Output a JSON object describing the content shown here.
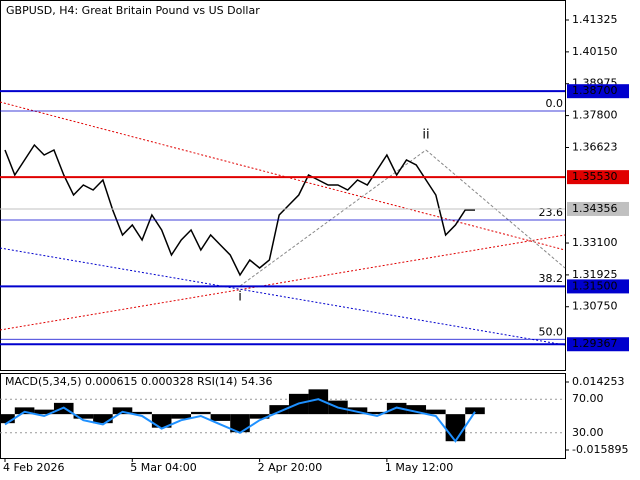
{
  "chart_data": {
    "type": "price-chart",
    "title": "GBPUSD, H4:  Great Britain Pound vs US Dollar",
    "ylim": [
      1.28417,
      1.42063
    ],
    "yticks": [
      {
        "value": 1.41325,
        "label": "1.41325"
      },
      {
        "value": 1.4015,
        "label": "1.40150"
      },
      {
        "value": 1.38975,
        "label": "1.38975"
      },
      {
        "value": 1.378,
        "label": "1.37800"
      },
      {
        "value": 1.36623,
        "label": "1.36623"
      },
      {
        "value": 1.331,
        "label": "1.33100"
      },
      {
        "value": 1.31925,
        "label": "1.31925"
      },
      {
        "value": 1.3075,
        "label": "1.30750"
      }
    ],
    "close": {
      "color": "#000000",
      "values": [
        1.36531,
        1.35609,
        1.36162,
        1.36715,
        1.36346,
        1.36531,
        1.35609,
        1.34871,
        1.3524,
        1.35056,
        1.35425,
        1.34318,
        1.33396,
        1.33765,
        1.33212,
        1.34134,
        1.33581,
        1.32659,
        1.33212,
        1.33581,
        1.32843,
        1.33396,
        1.33027,
        1.32659,
        1.31921,
        1.32474,
        1.32179,
        1.32474,
        1.34134,
        1.34503,
        1.34871,
        1.35609,
        1.35425,
        1.3524,
        1.3524,
        1.35056,
        1.35425,
        1.3524,
        1.35793,
        1.36346,
        1.35609,
        1.36162,
        1.35978,
        1.35425,
        1.34871,
        1.33396,
        1.33765,
        1.34318,
        1.34318
      ]
    },
    "x_labels": [
      {
        "index": 0,
        "label": "4 Feb 2026"
      },
      {
        "index": 13,
        "label": "5 Mar 04:00"
      },
      {
        "index": 26,
        "label": "2 Apr 20:00"
      },
      {
        "index": 39,
        "label": "1 May 12:00"
      }
    ],
    "levels": [
      {
        "value": 1.387,
        "label": "1.38700",
        "color": "#0000cd"
      },
      {
        "value": 1.3553,
        "label": "1.35530",
        "color": "#e00000"
      },
      {
        "value": 1.315,
        "label": "1.31500",
        "color": "#0000cd"
      },
      {
        "value": 1.29367,
        "label": "1.29367",
        "color": "#0000cd"
      }
    ],
    "current_price": {
      "value": 1.34356,
      "label": "1.34356",
      "color": "#c0c0c0"
    },
    "fibonacci": [
      {
        "value": 1.3797,
        "label": "0.0"
      },
      {
        "value": 1.3395,
        "label": "23.6"
      },
      {
        "value": 1.3152,
        "label": "38.2"
      },
      {
        "value": 1.2955,
        "label": "50.0"
      }
    ],
    "waves": [
      {
        "label": "i",
        "index": 24,
        "value": 1.3111
      },
      {
        "label": "ii",
        "index": 43,
        "value": 1.3708
      }
    ],
    "indicator": {
      "label": "MACD(5,34,5) 0.000615 0.000328 RSI(14) 54.36",
      "macd_lim": [
        -0.015895,
        0.014253
      ],
      "macd_ticks": [
        0.014253,
        -0.015895
      ],
      "macd": {
        "color": "#000000",
        "values": [
          -0.004,
          0.003,
          0.002,
          0.005,
          -0.002,
          -0.004,
          0.003,
          0.001,
          -0.006,
          -0.002,
          0.001,
          -0.003,
          -0.008,
          -0.002,
          0.004,
          0.009,
          0.011,
          0.006,
          0.003,
          0.001,
          0.005,
          0.004,
          0.002,
          -0.012,
          0.003
        ]
      },
      "rsi_lim": [
        0,
        100
      ],
      "rsi_ticks": [
        {
          "value": 70,
          "label": "70.00"
        },
        {
          "value": 30,
          "label": "30.00"
        }
      ],
      "rsi": {
        "color": "#1e90ff",
        "values": [
          40,
          55,
          50,
          60,
          45,
          40,
          55,
          50,
          35,
          45,
          50,
          40,
          30,
          45,
          55,
          65,
          70,
          60,
          55,
          50,
          60,
          55,
          50,
          20,
          55
        ]
      }
    }
  }
}
